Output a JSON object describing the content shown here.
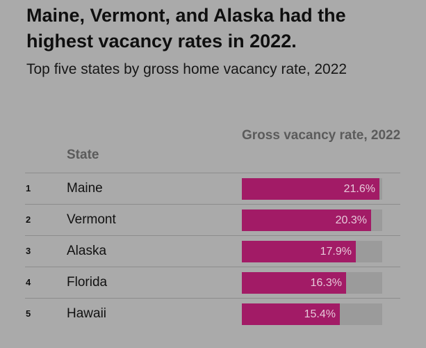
{
  "header": {
    "title": "Maine, Vermont, and Alaska had the highest vacancy rates in 2022.",
    "subtitle": "Top five states by gross home vacancy rate, 2022"
  },
  "table": {
    "columns": [
      "State",
      "Gross vacancy rate, 2022"
    ]
  },
  "colors": {
    "bar": "#a21b66",
    "track": "#9b9b9b",
    "background": "#aaaaaa"
  },
  "chart_data": {
    "type": "bar",
    "title": "Maine, Vermont, and Alaska had the highest vacancy rates in 2022.",
    "subtitle": "Top five states by gross home vacancy rate, 2022",
    "xlabel": "State",
    "ylabel": "Gross vacancy rate, 2022",
    "ranks": [
      "1",
      "2",
      "3",
      "4",
      "5"
    ],
    "categories": [
      "Maine",
      "Vermont",
      "Alaska",
      "Florida",
      "Hawaii"
    ],
    "values": [
      21.6,
      20.3,
      17.9,
      16.3,
      15.4
    ],
    "value_labels": [
      "21.6%",
      "20.3%",
      "17.9%",
      "16.3%",
      "15.4%"
    ],
    "ylim": [
      0,
      22
    ]
  }
}
